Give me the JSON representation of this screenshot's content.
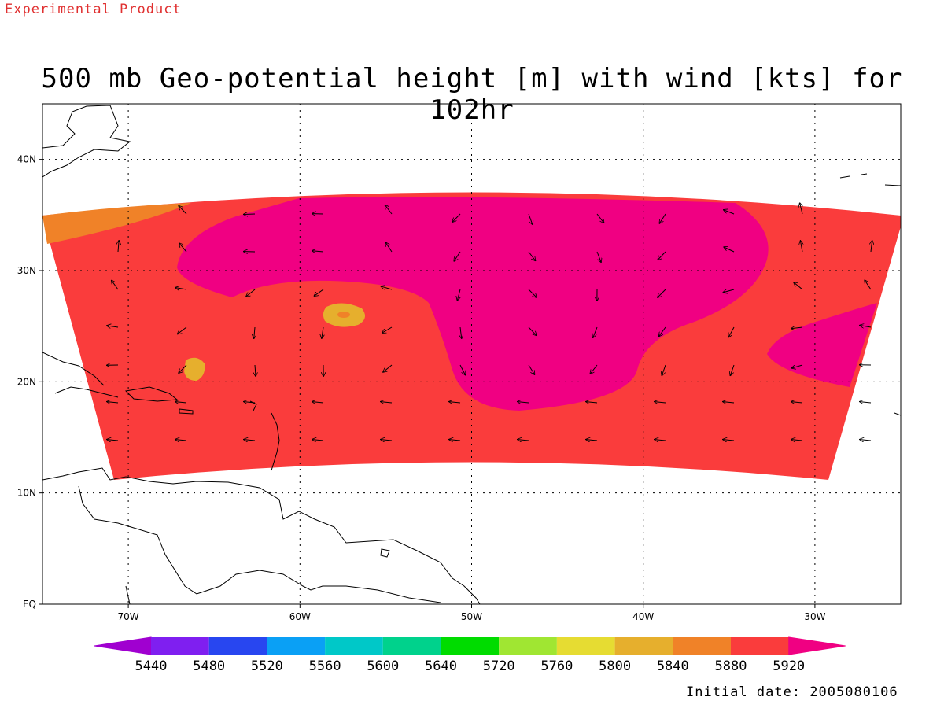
{
  "header": {
    "banner": "Experimental Product",
    "banner_color": "#e03030",
    "title": "500 mb Geo-potential height [m] with wind [kts] for 102hr"
  },
  "footer": {
    "initial_date": "Initial date: 2005080106"
  },
  "map": {
    "projection": "lat-lon",
    "lon_range": [
      -75,
      -25
    ],
    "lat_range": [
      0,
      45
    ],
    "lon_ticks": [
      "70W",
      "60W",
      "50W",
      "40W",
      "30W"
    ],
    "lat_ticks": [
      "EQ",
      "10N",
      "20N",
      "30N",
      "40N"
    ],
    "grid": "dotted",
    "coastlines": true,
    "wind_vectors": true
  },
  "colorbar": {
    "levels": [
      "5440",
      "5480",
      "5520",
      "5560",
      "5600",
      "5640",
      "5720",
      "5760",
      "5800",
      "5840",
      "5880",
      "5920"
    ],
    "colors": [
      "#a000d0",
      "#7f1ff0",
      "#2846f0",
      "#0aa0f5",
      "#00c8c8",
      "#00d28c",
      "#00dc00",
      "#a0e632",
      "#e6dc32",
      "#e6af2d",
      "#f08228",
      "#fa3c3c",
      "#f00082"
    ],
    "extends": "both"
  },
  "fields": {
    "background_color": "#fa3c3c",
    "high_color": "#f00082",
    "low_color": "#f08228",
    "min_color": "#e6af2d"
  }
}
